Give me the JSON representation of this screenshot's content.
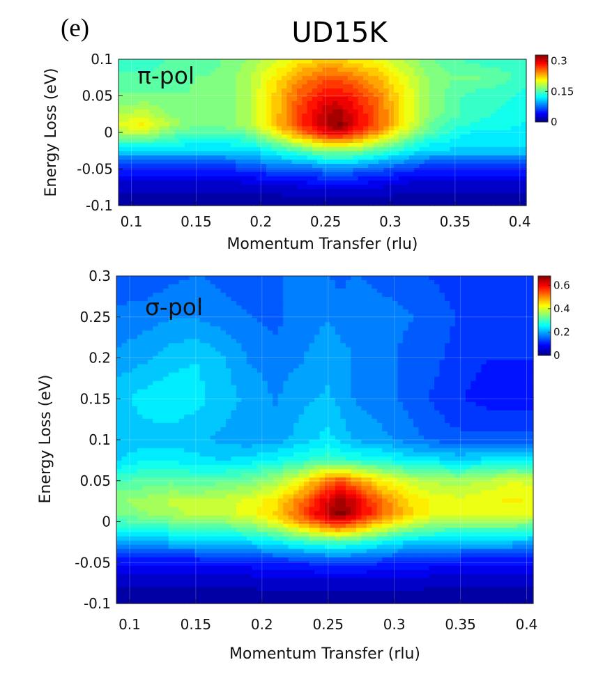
{
  "figure": {
    "panel_label": "(e)",
    "title": "UD15K"
  },
  "colormap": "jet",
  "chart_data": [
    {
      "type": "heatmap",
      "annotation": "π-pol",
      "xlabel": "Momentum Transfer (rlu)",
      "ylabel": "Energy Loss (eV)",
      "xlim": [
        0.09,
        0.405
      ],
      "ylim": [
        -0.1,
        0.1
      ],
      "x_ticks": [
        "0.1",
        "0.15",
        "0.2",
        "0.25",
        "0.3",
        "0.35",
        "0.4"
      ],
      "x_tick_values": [
        0.1,
        0.15,
        0.2,
        0.25,
        0.3,
        0.35,
        0.4
      ],
      "y_ticks": [
        "0.1",
        "0.05",
        "0",
        "-0.05",
        "-0.1"
      ],
      "y_tick_values": [
        0.1,
        0.05,
        0,
        -0.05,
        -0.1
      ],
      "colorbar": {
        "min": 0,
        "max": 0.33,
        "ticks": [
          "0.3",
          "0.15",
          "0"
        ],
        "tick_values": [
          0.3,
          0.15,
          0
        ]
      },
      "x": [
        0.09,
        0.11,
        0.13,
        0.15,
        0.17,
        0.19,
        0.21,
        0.23,
        0.25,
        0.26,
        0.27,
        0.29,
        0.31,
        0.33,
        0.35,
        0.37,
        0.39,
        0.405
      ],
      "y": [
        0.1,
        0.075,
        0.05,
        0.025,
        0.01,
        0,
        -0.025,
        -0.05,
        -0.075,
        -0.1
      ],
      "z": [
        [
          0.14,
          0.14,
          0.15,
          0.15,
          0.16,
          0.17,
          0.19,
          0.21,
          0.22,
          0.22,
          0.21,
          0.2,
          0.18,
          0.16,
          0.15,
          0.14,
          0.14,
          0.14
        ],
        [
          0.15,
          0.15,
          0.15,
          0.16,
          0.16,
          0.18,
          0.21,
          0.24,
          0.26,
          0.26,
          0.25,
          0.23,
          0.2,
          0.17,
          0.16,
          0.16,
          0.15,
          0.14
        ],
        [
          0.16,
          0.16,
          0.16,
          0.16,
          0.16,
          0.18,
          0.22,
          0.26,
          0.29,
          0.29,
          0.28,
          0.25,
          0.21,
          0.17,
          0.15,
          0.14,
          0.14,
          0.13
        ],
        [
          0.18,
          0.19,
          0.17,
          0.16,
          0.16,
          0.18,
          0.22,
          0.27,
          0.31,
          0.32,
          0.3,
          0.26,
          0.21,
          0.17,
          0.15,
          0.14,
          0.13,
          0.13
        ],
        [
          0.2,
          0.21,
          0.18,
          0.16,
          0.16,
          0.18,
          0.22,
          0.27,
          0.31,
          0.33,
          0.3,
          0.26,
          0.21,
          0.16,
          0.14,
          0.13,
          0.13,
          0.12
        ],
        [
          0.18,
          0.19,
          0.16,
          0.15,
          0.15,
          0.16,
          0.2,
          0.25,
          0.29,
          0.3,
          0.28,
          0.24,
          0.19,
          0.15,
          0.13,
          0.12,
          0.12,
          0.12
        ],
        [
          0.11,
          0.11,
          0.11,
          0.11,
          0.11,
          0.11,
          0.13,
          0.15,
          0.17,
          0.17,
          0.17,
          0.15,
          0.13,
          0.11,
          0.11,
          0.11,
          0.11,
          0.11
        ],
        [
          0.05,
          0.05,
          0.05,
          0.05,
          0.05,
          0.06,
          0.07,
          0.07,
          0.08,
          0.08,
          0.08,
          0.07,
          0.06,
          0.05,
          0.05,
          0.05,
          0.05,
          0.05
        ],
        [
          0.02,
          0.02,
          0.02,
          0.02,
          0.02,
          0.02,
          0.02,
          0.03,
          0.03,
          0.03,
          0.03,
          0.03,
          0.02,
          0.02,
          0.02,
          0.02,
          0.02,
          0.02
        ],
        [
          0.01,
          0.01,
          0.01,
          0.01,
          0.01,
          0.01,
          0.01,
          0.01,
          0.01,
          0.01,
          0.01,
          0.01,
          0.01,
          0.01,
          0.01,
          0.01,
          0.01,
          0.01
        ]
      ]
    },
    {
      "type": "heatmap",
      "annotation": "σ-pol",
      "xlabel": "Momentum Transfer (rlu)",
      "ylabel": "Energy Loss (eV)",
      "xlim": [
        0.09,
        0.405
      ],
      "ylim": [
        -0.1,
        0.3
      ],
      "x_ticks": [
        "0.1",
        "0.15",
        "0.2",
        "0.25",
        "0.3",
        "0.35",
        "0.4"
      ],
      "x_tick_values": [
        0.1,
        0.15,
        0.2,
        0.25,
        0.3,
        0.35,
        0.4
      ],
      "y_ticks": [
        "0.3",
        "0.25",
        "0.2",
        "0.15",
        "0.1",
        "0.05",
        "0",
        "-0.05",
        "-0.1"
      ],
      "y_tick_values": [
        0.3,
        0.25,
        0.2,
        0.15,
        0.1,
        0.05,
        0,
        -0.05,
        -0.1
      ],
      "colorbar": {
        "min": 0,
        "max": 0.68,
        "ticks": [
          "0.6",
          "0.4",
          "0.2",
          "0"
        ],
        "tick_values": [
          0.6,
          0.4,
          0.2,
          0
        ]
      },
      "x": [
        0.09,
        0.11,
        0.13,
        0.15,
        0.17,
        0.19,
        0.21,
        0.23,
        0.25,
        0.26,
        0.27,
        0.29,
        0.31,
        0.33,
        0.35,
        0.37,
        0.39,
        0.405
      ],
      "y": [
        0.3,
        0.25,
        0.2,
        0.15,
        0.1,
        0.075,
        0.05,
        0.025,
        0.01,
        0,
        -0.025,
        -0.05,
        -0.075,
        -0.1
      ],
      "z": [
        [
          0.15,
          0.14,
          0.15,
          0.16,
          0.15,
          0.14,
          0.15,
          0.17,
          0.16,
          0.15,
          0.16,
          0.15,
          0.14,
          0.13,
          0.12,
          0.12,
          0.12,
          0.12
        ],
        [
          0.16,
          0.17,
          0.18,
          0.18,
          0.17,
          0.16,
          0.15,
          0.17,
          0.18,
          0.17,
          0.18,
          0.17,
          0.16,
          0.15,
          0.13,
          0.12,
          0.12,
          0.12
        ],
        [
          0.19,
          0.2,
          0.22,
          0.23,
          0.21,
          0.18,
          0.17,
          0.18,
          0.2,
          0.19,
          0.18,
          0.17,
          0.15,
          0.14,
          0.12,
          0.11,
          0.11,
          0.11
        ],
        [
          0.22,
          0.24,
          0.25,
          0.24,
          0.22,
          0.2,
          0.18,
          0.2,
          0.21,
          0.2,
          0.18,
          0.17,
          0.15,
          0.13,
          0.11,
          0.1,
          0.1,
          0.1
        ],
        [
          0.21,
          0.22,
          0.22,
          0.21,
          0.2,
          0.19,
          0.19,
          0.22,
          0.24,
          0.22,
          0.2,
          0.19,
          0.17,
          0.15,
          0.14,
          0.14,
          0.14,
          0.14
        ],
        [
          0.23,
          0.25,
          0.25,
          0.24,
          0.23,
          0.24,
          0.26,
          0.28,
          0.3,
          0.29,
          0.28,
          0.27,
          0.25,
          0.24,
          0.23,
          0.24,
          0.25,
          0.24
        ],
        [
          0.3,
          0.31,
          0.32,
          0.31,
          0.32,
          0.33,
          0.36,
          0.42,
          0.52,
          0.54,
          0.5,
          0.43,
          0.39,
          0.37,
          0.36,
          0.38,
          0.4,
          0.39
        ],
        [
          0.35,
          0.36,
          0.38,
          0.38,
          0.39,
          0.41,
          0.44,
          0.52,
          0.62,
          0.66,
          0.62,
          0.52,
          0.45,
          0.42,
          0.41,
          0.42,
          0.43,
          0.42
        ],
        [
          0.34,
          0.35,
          0.37,
          0.38,
          0.39,
          0.41,
          0.45,
          0.54,
          0.64,
          0.68,
          0.63,
          0.53,
          0.46,
          0.42,
          0.41,
          0.41,
          0.41,
          0.4
        ],
        [
          0.3,
          0.31,
          0.33,
          0.34,
          0.35,
          0.37,
          0.42,
          0.5,
          0.58,
          0.6,
          0.56,
          0.47,
          0.41,
          0.37,
          0.36,
          0.36,
          0.36,
          0.35
        ],
        [
          0.2,
          0.2,
          0.21,
          0.21,
          0.22,
          0.23,
          0.25,
          0.28,
          0.3,
          0.3,
          0.29,
          0.26,
          0.23,
          0.22,
          0.21,
          0.21,
          0.21,
          0.2
        ],
        [
          0.09,
          0.09,
          0.09,
          0.09,
          0.1,
          0.1,
          0.11,
          0.11,
          0.12,
          0.12,
          0.12,
          0.11,
          0.1,
          0.1,
          0.09,
          0.09,
          0.09,
          0.09
        ],
        [
          0.04,
          0.04,
          0.04,
          0.04,
          0.04,
          0.04,
          0.05,
          0.05,
          0.05,
          0.05,
          0.05,
          0.05,
          0.05,
          0.04,
          0.04,
          0.04,
          0.04,
          0.04
        ],
        [
          0.02,
          0.02,
          0.02,
          0.02,
          0.02,
          0.02,
          0.02,
          0.02,
          0.02,
          0.02,
          0.02,
          0.02,
          0.02,
          0.02,
          0.02,
          0.02,
          0.02,
          0.02
        ]
      ]
    }
  ]
}
